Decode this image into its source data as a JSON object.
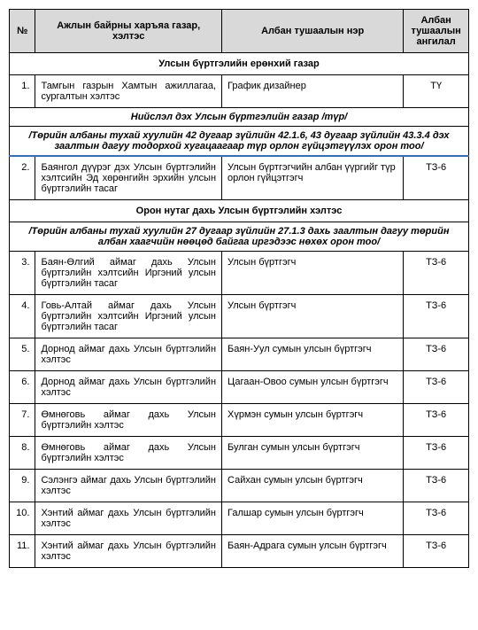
{
  "headers": {
    "num": "№",
    "dept": "Ажлын байрны харъяа газар, хэлтэс",
    "pos": "Албан тушаалын нэр",
    "rank": "Албан тушаалын ангилал"
  },
  "section1": {
    "title": "Улсын бүртгэлийн ерөнхий газар"
  },
  "rows1": [
    {
      "n": "1.",
      "dept": "Тамгын газрын Хамтын ажиллагаа, сургалтын хэлтэс",
      "pos": "График дизайнер",
      "rank": "ТҮ"
    }
  ],
  "section2": {
    "title": "Нийслэл дэх Улсын бүртгэлийн газар /түр/",
    "sub": "/Төрийн албаны тухай хуулийн 42 дугаар зүйлийн 42.1.6, 43 дугаар зүйлийн 43.3.4 дэх заалтын дагуу тодорхой хугацаагаар түр орлон гүйцэтгүүлэх орон тоо/"
  },
  "rows2": [
    {
      "n": "2.",
      "dept": "Баянгол дүүрэг дэх Улсын бүртгэлийн хэлтсийн Эд хөрөнгийн эрхийн улсын бүртгэлийн тасаг",
      "pos": "Улсын бүртгэгчийн албан үүргийг түр орлон гүйцэтгэгч",
      "rank": "ТЗ-6"
    }
  ],
  "section3": {
    "title": "Орон нутаг дахь Улсын бүртгэлийн хэлтэс",
    "sub": "/Төрийн албаны тухай хуулийн 27 дугаар зүйлийн 27.1.3 дахь заалтын дагуу төрийн албан хаагчийн нөөцөд байгаа иргэдээс нөхөх орон тоо/"
  },
  "rows3": [
    {
      "n": "3.",
      "dept": "Баян-Өлгий аймаг дахь Улсын бүртгэлийн хэлтсийн Иргэний улсын бүртгэлийн тасаг",
      "pos": "Улсын бүртгэгч",
      "rank": "ТЗ-6"
    },
    {
      "n": "4.",
      "dept": "Говь-Алтай аймаг дахь Улсын бүртгэлийн хэлтсийн Иргэний улсын бүртгэлийн тасаг",
      "pos": "Улсын бүртгэгч",
      "rank": "ТЗ-6"
    },
    {
      "n": "5.",
      "dept": "Дорнод аймаг дахь Улсын бүртгэлийн хэлтэс",
      "pos": "Баян-Уул сумын улсын бүртгэгч",
      "rank": "ТЗ-6"
    },
    {
      "n": "6.",
      "dept": "Дорнод аймаг дахь Улсын бүртгэлийн хэлтэс",
      "pos": "Цагаан-Овоо сумын улсын бүртгэгч",
      "rank": "ТЗ-6"
    },
    {
      "n": "7.",
      "dept": "Өмнөговь аймаг дахь Улсын бүртгэлийн хэлтэс",
      "pos": "Хүрмэн сумын улсын бүртгэгч",
      "rank": "ТЗ-6"
    },
    {
      "n": "8.",
      "dept": "Өмнөговь аймаг дахь Улсын бүртгэлийн хэлтэс",
      "pos": "Булган сумын улсын бүртгэгч",
      "rank": "ТЗ-6"
    },
    {
      "n": "9.",
      "dept": "Сэлэнгэ аймаг дахь Улсын бүртгэлийн хэлтэс",
      "pos": "Сайхан сумын улсын бүртгэгч",
      "rank": "ТЗ-6"
    },
    {
      "n": "10.",
      "dept": "Хэнтий аймаг дахь Улсын бүртгэлийн хэлтэс",
      "pos": "Галшар сумын улсын бүртгэгч",
      "rank": "ТЗ-6"
    },
    {
      "n": "11.",
      "dept": "Хэнтий аймаг дахь Улсын бүртгэлийн хэлтэс",
      "pos": "Баян-Адрага сумын улсын бүртгэгч",
      "rank": "ТЗ-6"
    }
  ]
}
